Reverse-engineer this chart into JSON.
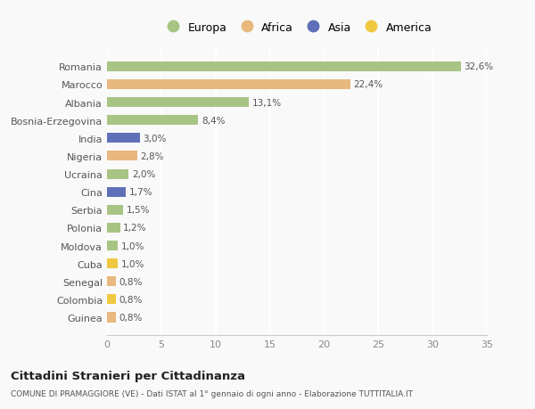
{
  "countries": [
    "Romania",
    "Marocco",
    "Albania",
    "Bosnia-Erzegovina",
    "India",
    "Nigeria",
    "Ucraina",
    "Cina",
    "Serbia",
    "Polonia",
    "Moldova",
    "Cuba",
    "Senegal",
    "Colombia",
    "Guinea"
  ],
  "values": [
    32.6,
    22.4,
    13.1,
    8.4,
    3.0,
    2.8,
    2.0,
    1.7,
    1.5,
    1.2,
    1.0,
    1.0,
    0.8,
    0.8,
    0.8
  ],
  "labels": [
    "32,6%",
    "22,4%",
    "13,1%",
    "8,4%",
    "3,0%",
    "2,8%",
    "2,0%",
    "1,7%",
    "1,5%",
    "1,2%",
    "1,0%",
    "1,0%",
    "0,8%",
    "0,8%",
    "0,8%"
  ],
  "continents": [
    "Europa",
    "Africa",
    "Europa",
    "Europa",
    "Asia",
    "Africa",
    "Europa",
    "Asia",
    "Europa",
    "Europa",
    "Europa",
    "America",
    "Africa",
    "America",
    "Africa"
  ],
  "continent_colors": {
    "Europa": "#a8c484",
    "Africa": "#e8b87e",
    "Asia": "#6070b8",
    "America": "#f0c840"
  },
  "legend_order": [
    "Europa",
    "Africa",
    "Asia",
    "America"
  ],
  "title": "Cittadini Stranieri per Cittadinanza",
  "subtitle": "COMUNE DI PRAMAGGIORE (VE) - Dati ISTAT al 1° gennaio di ogni anno - Elaborazione TUTTITALIA.IT",
  "xlim": [
    0,
    35
  ],
  "xticks": [
    0,
    5,
    10,
    15,
    20,
    25,
    30,
    35
  ],
  "background_color": "#f9f9f9",
  "grid_color": "#ffffff",
  "bar_height": 0.55
}
